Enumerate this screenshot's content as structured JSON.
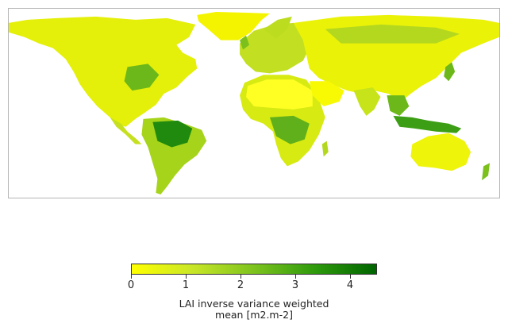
{
  "legend": {
    "title_line1": "LAI inverse variance weighted",
    "title_line2": "mean [m2.m-2]",
    "ticks": [
      "0",
      "1",
      "2",
      "3",
      "4"
    ],
    "tick_values": [
      0,
      1,
      2,
      3,
      4
    ],
    "range": [
      0,
      4.5
    ],
    "colormap": [
      "#ffff00",
      "#c8e628",
      "#7dc31e",
      "#2e9a0c",
      "#006400"
    ]
  },
  "map": {
    "projection": "equirectangular",
    "background": "#ffffff",
    "frame_color": "#b5b5b5",
    "colors": {
      "low": "#f4f400",
      "low_mid": "#d9ec10",
      "mid": "#a6d41a",
      "high": "#5fb01a",
      "very_high": "#1f8a0e"
    }
  }
}
